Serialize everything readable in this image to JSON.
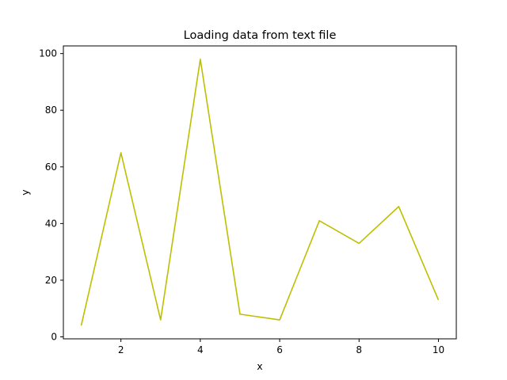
{
  "chart_data": {
    "type": "line",
    "title": "Loading data from text file",
    "xlabel": "x",
    "ylabel": "y",
    "x": [
      1,
      2,
      3,
      4,
      5,
      6,
      7,
      8,
      9,
      10
    ],
    "series": [
      {
        "values": [
          4,
          65,
          6,
          98,
          8,
          6,
          41,
          33,
          46,
          13
        ],
        "color": "#bfbf00"
      }
    ],
    "xlim": [
      0.55,
      10.45
    ],
    "ylim": [
      -0.7,
      102.7
    ],
    "xticks": [
      2,
      4,
      6,
      8,
      10
    ],
    "yticks": [
      0,
      20,
      40,
      60,
      80,
      100
    ],
    "grid": false,
    "legend": "none"
  }
}
